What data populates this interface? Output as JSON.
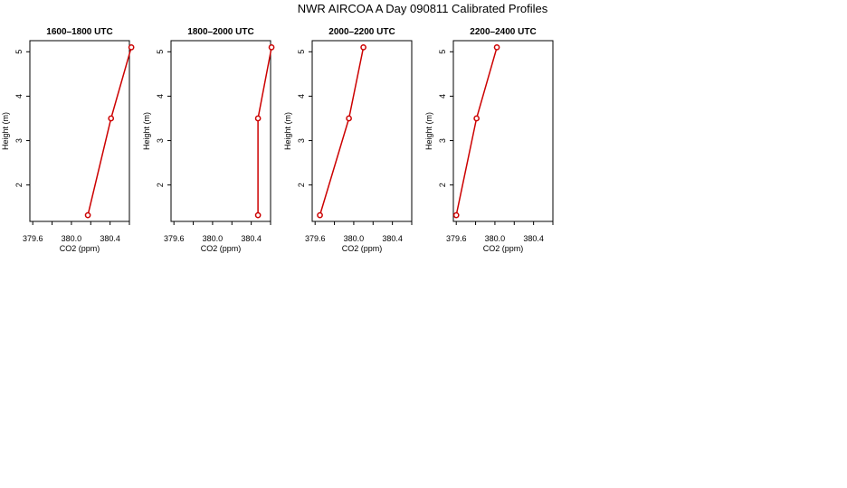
{
  "title": "NWR AIRCOA A  Day 090811  Calibrated Profiles",
  "colors": {
    "series": "#cc0000",
    "axes": "#000000",
    "background": "#ffffff"
  },
  "chart_data": [
    {
      "type": "line",
      "title": "1600–1800 UTC",
      "xlabel": "CO2 (ppm)",
      "ylabel": "Height (m)",
      "xlim": [
        379.57,
        380.6
      ],
      "ylim": [
        1.18,
        5.25
      ],
      "xticks": [
        379.6,
        380.0,
        380.4
      ],
      "xtick_labels": [
        "379.6",
        "380.0",
        "380.4"
      ],
      "yticks": [
        2,
        3,
        4,
        5
      ],
      "ytick_labels": [
        "2",
        "3",
        "4",
        "5"
      ],
      "grid": false,
      "series": [
        {
          "x": [
            380.17,
            380.41,
            380.62
          ],
          "y": [
            1.32,
            3.5,
            5.1
          ]
        }
      ]
    },
    {
      "type": "line",
      "title": "1800–2000 UTC",
      "xlabel": "CO2 (ppm)",
      "ylabel": "Height (m)",
      "xlim": [
        379.57,
        380.6
      ],
      "ylim": [
        1.18,
        5.25
      ],
      "xticks": [
        379.6,
        380.0,
        380.4
      ],
      "xtick_labels": [
        "379.6",
        "380.0",
        "380.4"
      ],
      "yticks": [
        2,
        3,
        4,
        5
      ],
      "ytick_labels": [
        "2",
        "3",
        "4",
        "5"
      ],
      "grid": false,
      "series": [
        {
          "x": [
            380.47,
            380.47,
            380.61
          ],
          "y": [
            1.32,
            3.5,
            5.1
          ]
        }
      ]
    },
    {
      "type": "line",
      "title": "2000–2200 UTC",
      "xlabel": "CO2 (ppm)",
      "ylabel": "Height (m)",
      "xlim": [
        379.57,
        380.6
      ],
      "ylim": [
        1.18,
        5.25
      ],
      "xticks": [
        379.6,
        380.0,
        380.4
      ],
      "xtick_labels": [
        "379.6",
        "380.0",
        "380.4"
      ],
      "yticks": [
        2,
        3,
        4,
        5
      ],
      "ytick_labels": [
        "2",
        "3",
        "4",
        "5"
      ],
      "grid": false,
      "series": [
        {
          "x": [
            379.65,
            379.95,
            380.1
          ],
          "y": [
            1.32,
            3.5,
            5.1
          ]
        }
      ]
    },
    {
      "type": "line",
      "title": "2200–2400 UTC",
      "xlabel": "CO2 (ppm)",
      "ylabel": "Height (m)",
      "xlim": [
        379.57,
        380.6
      ],
      "ylim": [
        1.18,
        5.25
      ],
      "xticks": [
        379.6,
        380.0,
        380.4
      ],
      "xtick_labels": [
        "379.6",
        "380.0",
        "380.4"
      ],
      "yticks": [
        2,
        3,
        4,
        5
      ],
      "ytick_labels": [
        "2",
        "3",
        "4",
        "5"
      ],
      "grid": false,
      "series": [
        {
          "x": [
            379.6,
            379.81,
            380.02
          ],
          "y": [
            1.32,
            3.5,
            5.1
          ]
        }
      ]
    }
  ]
}
